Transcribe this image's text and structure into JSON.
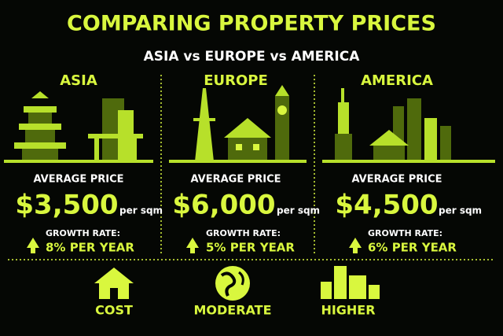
{
  "header": {
    "title": "COMPARING PROPERTY PRICES",
    "subtitle": "ASIA vs EUROPE vs AMERICA"
  },
  "regions": [
    {
      "name": "ASIA",
      "price_label": "AVERAGE PRICE",
      "price": "$3,500",
      "unit": "per sqm",
      "growth_label": "GROWTH RATE:",
      "growth": "8% PER YEAR"
    },
    {
      "name": "EUROPE",
      "price_label": "AVERAGE PRICE",
      "price": "$6,000",
      "unit": "per sqm",
      "growth_label": "GROWTH RATE:",
      "growth": "5% PER YEAR"
    },
    {
      "name": "AMERICA",
      "price_label": "AVERAGE PRICE",
      "price": "$4,500",
      "unit": "per sqm",
      "growth_label": "GROWTH RATE:",
      "growth": "6% PER YEAR"
    }
  ],
  "footer": {
    "items": [
      "COST",
      "MODERATE",
      "HIGHER"
    ]
  }
}
